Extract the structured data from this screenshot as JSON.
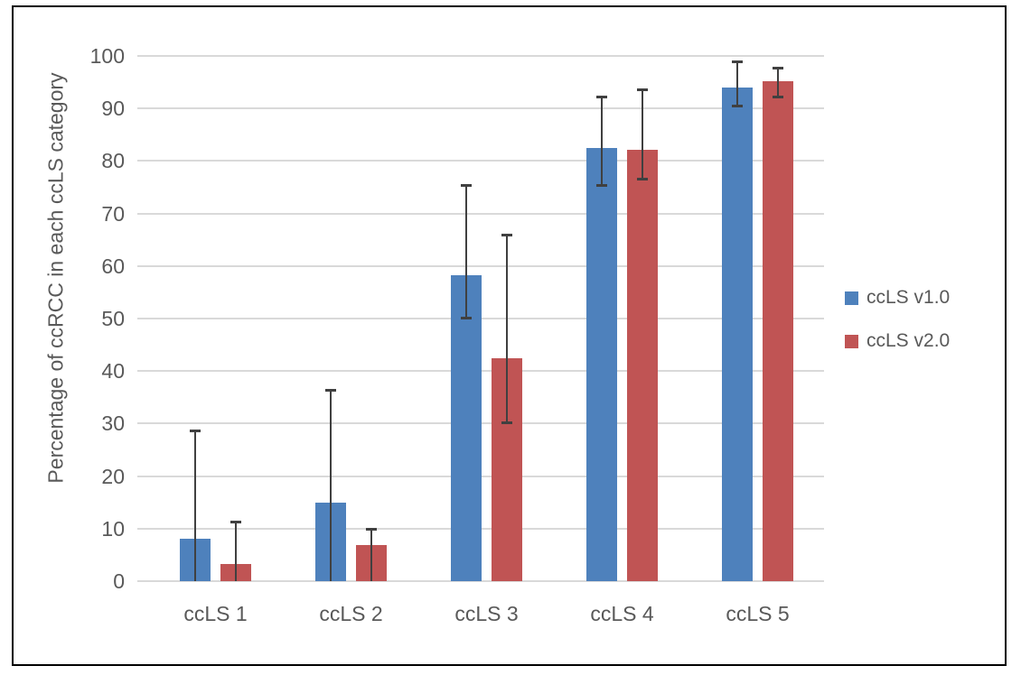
{
  "window": {
    "background_color": "#ffffff",
    "frame_border_color": "#000000"
  },
  "chart_data": {
    "type": "bar",
    "title": "",
    "xlabel": "",
    "ylabel": "Percentage of ccRCC in each ccLS category",
    "ylim": [
      0,
      100
    ],
    "yticks": [
      0,
      10,
      20,
      30,
      40,
      50,
      60,
      70,
      80,
      90,
      100
    ],
    "grid": true,
    "legend_position": "right",
    "categories": [
      "ccLS 1",
      "ccLS 2",
      "ccLS 3",
      "ccLS 4",
      "ccLS 5"
    ],
    "series": [
      {
        "name": "ccLS v1.0",
        "color": "#4E81BC",
        "values": [
          8,
          15,
          58.3,
          82.5,
          94
        ],
        "error_high": [
          28.7,
          36.5,
          75.4,
          92.3,
          99
        ],
        "error_low": [
          0,
          0,
          50,
          75.2,
          90.4
        ]
      },
      {
        "name": "ccLS v2.0",
        "color": "#C05454",
        "values": [
          3.3,
          6.9,
          42.4,
          82.1,
          95.2
        ],
        "error_high": [
          11.3,
          10,
          66,
          93.6,
          97.7
        ],
        "error_low": [
          0,
          0,
          30,
          76.4,
          92.1
        ]
      }
    ],
    "error_bar_color": "#404040",
    "gridline_color": "#D9D9D9",
    "text_color": "#595959"
  }
}
